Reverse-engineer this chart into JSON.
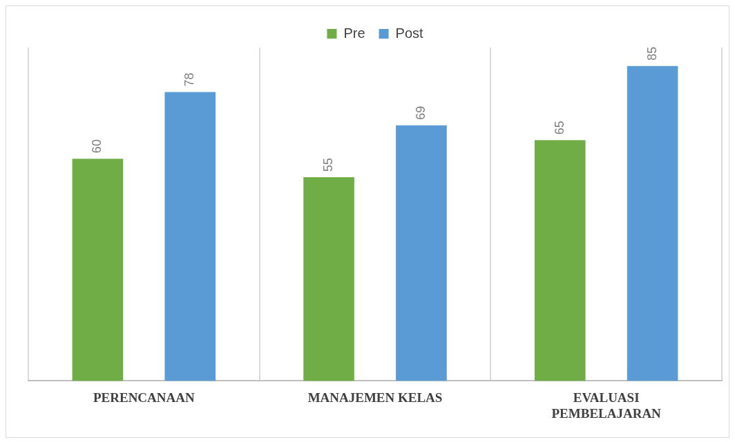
{
  "chart_data": {
    "type": "bar",
    "categories": [
      "PERENCANAAN",
      "MANAJEMEN KELAS",
      "EVALUASI PEMBELAJARAN"
    ],
    "series": [
      {
        "name": "Pre",
        "color": "#70ad47",
        "values": [
          60,
          55,
          65
        ]
      },
      {
        "name": "Post",
        "color": "#5b9bd5",
        "values": [
          78,
          69,
          85
        ]
      }
    ],
    "data_labels": true,
    "legend": "top",
    "grid": "x"
  }
}
